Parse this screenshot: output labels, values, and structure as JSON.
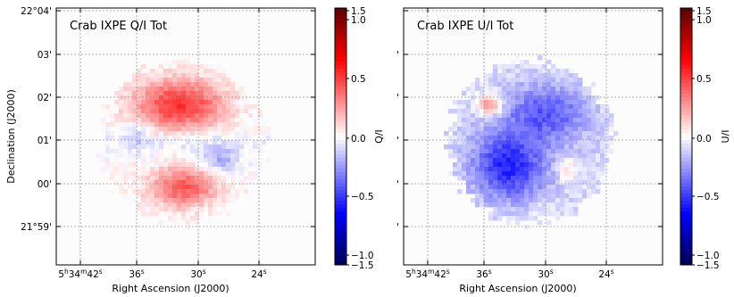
{
  "panels": [
    {
      "title": "Crab IXPE Q/I Tot",
      "colorbar_label": "Q/I",
      "y_axis_label": "Declination (J2000)",
      "x_axis_label": "Right Ascension (J2000)",
      "x_tick_labels": [
        "5h34m42s",
        "36s",
        "30s",
        "24s"
      ],
      "y_tick_labels": [
        "22°04'",
        "03'",
        "02'",
        "01'",
        "00'",
        "21°59'"
      ],
      "pattern": "q_over_i"
    },
    {
      "title": "Crab IXPE U/I Tot",
      "colorbar_label": "U/I",
      "y_axis_label": "",
      "x_axis_label": "Right Ascension (J2000)",
      "x_tick_labels": [
        "5h34m42s",
        "36s",
        "30s",
        "24s"
      ],
      "y_tick_labels": [
        "",
        "'",
        "'",
        "'",
        "'",
        "'"
      ],
      "pattern": "u_over_i"
    }
  ],
  "colorbar_tick_labels": [
    "1.5",
    "1.0",
    "0.5",
    "0.0",
    "−0.5",
    "−1.0",
    "−1.5"
  ],
  "colorbar_tick_values": [
    1.5,
    1.0,
    0.5,
    0.0,
    -0.5,
    -1.0,
    -1.5
  ],
  "colorbar_range": [
    -1.5,
    1.5
  ],
  "colormap": [
    "#00004d",
    "#0000ff",
    "#ffffff",
    "#ff0000",
    "#5a0000"
  ],
  "grid_color": "#999999"
}
